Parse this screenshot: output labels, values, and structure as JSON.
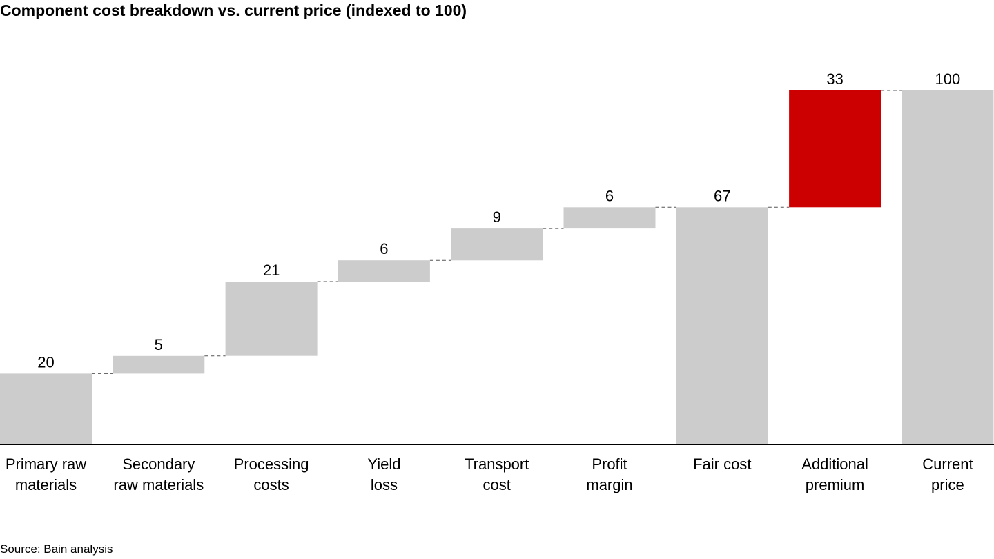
{
  "title": "Component cost breakdown vs. current price (indexed to 100)",
  "source": "Source: Bain analysis",
  "colors": {
    "bar": "#cccccc",
    "highlight": "#cc0000",
    "axis": "#000000",
    "connector": "#555555"
  },
  "chart_data": {
    "type": "bar",
    "subtype": "waterfall",
    "title": "Component cost breakdown vs. current price (indexed to 100)",
    "categories": [
      [
        "Primary raw",
        "materials"
      ],
      [
        "Secondary",
        "raw materials"
      ],
      [
        "Processing",
        "costs"
      ],
      [
        "Yield",
        "loss"
      ],
      [
        "Transport",
        "cost"
      ],
      [
        "Profit",
        "margin"
      ],
      [
        "Fair cost"
      ],
      [
        "Additional",
        "premium"
      ],
      [
        "Current",
        "price"
      ]
    ],
    "bars": [
      {
        "start": 0,
        "end": 20,
        "label": "20",
        "kind": "increment"
      },
      {
        "start": 20,
        "end": 25,
        "label": "5",
        "kind": "increment"
      },
      {
        "start": 25,
        "end": 46,
        "label": "21",
        "kind": "increment"
      },
      {
        "start": 46,
        "end": 52,
        "label": "6",
        "kind": "increment"
      },
      {
        "start": 52,
        "end": 61,
        "label": "9",
        "kind": "increment"
      },
      {
        "start": 61,
        "end": 67,
        "label": "6",
        "kind": "increment"
      },
      {
        "start": 0,
        "end": 67,
        "label": "67",
        "kind": "total"
      },
      {
        "start": 67,
        "end": 100,
        "label": "33",
        "kind": "highlight"
      },
      {
        "start": 0,
        "end": 100,
        "label": "100",
        "kind": "total"
      }
    ],
    "ylim": [
      0,
      100
    ],
    "grid": false,
    "legend": "none"
  }
}
